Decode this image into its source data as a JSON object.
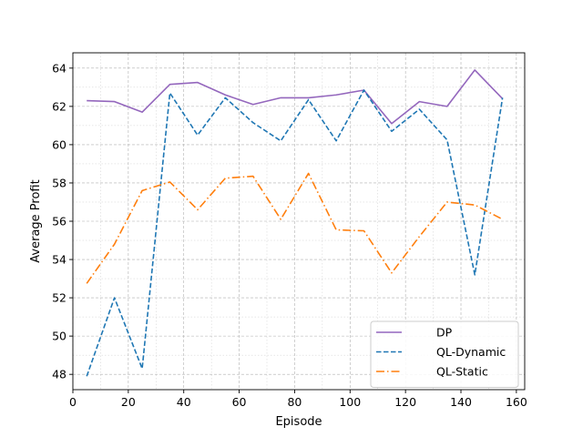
{
  "chart_data": {
    "type": "line",
    "xlabel": "Episode",
    "ylabel": "Average Profit",
    "xlim": [
      0,
      163
    ],
    "ylim": [
      47.2,
      64.8
    ],
    "xticks": [
      0,
      20,
      40,
      60,
      80,
      100,
      120,
      140,
      160
    ],
    "yticks": [
      48,
      50,
      52,
      54,
      56,
      58,
      60,
      62,
      64
    ],
    "grid": true,
    "legend_position": "lower-right",
    "x": [
      5,
      15,
      25,
      35,
      45,
      55,
      65,
      75,
      85,
      95,
      105,
      115,
      125,
      135,
      145,
      155
    ],
    "series": [
      {
        "name": "DP",
        "color": "#9467bd",
        "style": "solid",
        "values": [
          62.3,
          62.25,
          61.7,
          63.15,
          63.25,
          62.6,
          62.1,
          62.45,
          62.45,
          62.6,
          62.85,
          61.1,
          62.25,
          62.0,
          63.9,
          62.4
        ]
      },
      {
        "name": "QL-Dynamic",
        "color": "#1f77b4",
        "style": "dashed",
        "values": [
          47.9,
          52.0,
          48.3,
          62.7,
          60.5,
          62.45,
          61.15,
          60.2,
          62.35,
          60.2,
          62.85,
          60.7,
          61.85,
          60.25,
          53.2,
          62.45
        ]
      },
      {
        "name": "QL-Static",
        "color": "#ff7f0e",
        "style": "dashdot",
        "values": [
          52.75,
          54.8,
          57.6,
          58.05,
          56.6,
          58.25,
          58.35,
          56.1,
          58.5,
          55.55,
          55.5,
          53.3,
          55.2,
          57.0,
          56.85,
          56.1
        ]
      }
    ]
  }
}
